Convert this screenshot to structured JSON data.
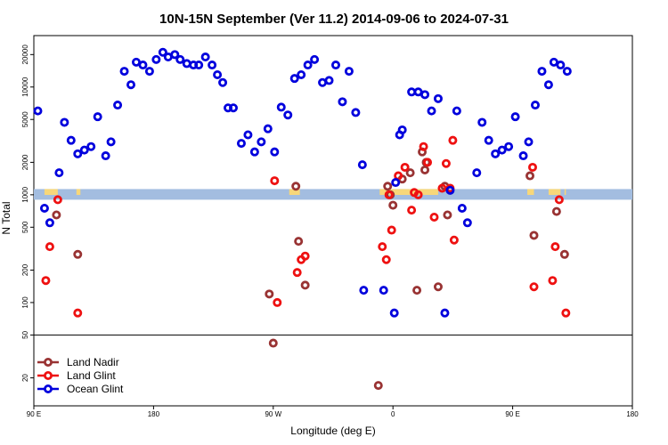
{
  "chart_data": {
    "type": "scatter",
    "title": "10N-15N September (Ver 11.2)   2014-09-06 to 2024-07-31",
    "xlabel": "Longitude (deg E)",
    "ylabel": "N Total",
    "xlim": [
      90,
      540
    ],
    "ylim": [
      11,
      30000
    ],
    "y_scale": "log",
    "x_ticks": [
      {
        "value": 90,
        "label": "90 E"
      },
      {
        "value": 180,
        "label": "180"
      },
      {
        "value": 270,
        "label": "90 W"
      },
      {
        "value": 360,
        "label": "0"
      },
      {
        "value": 450,
        "label": "90 E"
      },
      {
        "value": 540,
        "label": "180"
      }
    ],
    "y_ticks": [
      {
        "value": 20,
        "label": "20"
      },
      {
        "value": 50,
        "label": "50"
      },
      {
        "value": 100,
        "label": "100"
      },
      {
        "value": 200,
        "label": "200"
      },
      {
        "value": 500,
        "label": "500"
      },
      {
        "value": 1000,
        "label": "1000"
      },
      {
        "value": 2000,
        "label": "2000"
      },
      {
        "value": 5000,
        "label": "5000"
      },
      {
        "value": 10000,
        "label": "10000"
      },
      {
        "value": 20000,
        "label": "20000"
      }
    ],
    "legend_position": "bottom-left",
    "separator_y": 50,
    "band": {
      "low": 900,
      "high": 1130,
      "color": "#a3bde0",
      "land_color": "#f7d77a"
    },
    "series": [
      {
        "name": "Land Nadir",
        "color": "#993333",
        "points": [
          [
            107,
            650
          ],
          [
            123,
            280
          ],
          [
            267,
            120
          ],
          [
            270,
            42
          ],
          [
            287,
            1200
          ],
          [
            289,
            370
          ],
          [
            294,
            145
          ],
          [
            349,
            17
          ],
          [
            356,
            1200
          ],
          [
            358,
            1000
          ],
          [
            360,
            800
          ],
          [
            367,
            1400
          ],
          [
            373,
            1600
          ],
          [
            378,
            130
          ],
          [
            382,
            2500
          ],
          [
            384,
            1700
          ],
          [
            385,
            2000
          ],
          [
            394,
            140
          ],
          [
            399,
            1200
          ],
          [
            401,
            650
          ],
          [
            463,
            1500
          ],
          [
            466,
            420
          ],
          [
            483,
            700
          ],
          [
            489,
            280
          ]
        ]
      },
      {
        "name": "Land Glint",
        "color": "#ee1111",
        "points": [
          [
            99,
            160
          ],
          [
            102,
            330
          ],
          [
            108,
            900
          ],
          [
            123,
            80
          ],
          [
            271,
            1350
          ],
          [
            273,
            100
          ],
          [
            288,
            190
          ],
          [
            291,
            250
          ],
          [
            294,
            270
          ],
          [
            352,
            330
          ],
          [
            355,
            250
          ],
          [
            357,
            1000
          ],
          [
            359,
            470
          ],
          [
            364,
            1500
          ],
          [
            369,
            1800
          ],
          [
            374,
            720
          ],
          [
            376,
            1050
          ],
          [
            379,
            1000
          ],
          [
            383,
            2800
          ],
          [
            386,
            2000
          ],
          [
            391,
            620
          ],
          [
            397,
            1150
          ],
          [
            400,
            1950
          ],
          [
            403,
            1150
          ],
          [
            405,
            3200
          ],
          [
            406,
            380
          ],
          [
            465,
            1800
          ],
          [
            466,
            140
          ],
          [
            480,
            160
          ],
          [
            482,
            330
          ],
          [
            485,
            900
          ],
          [
            490,
            80
          ]
        ]
      },
      {
        "name": "Ocean Glint",
        "color": "#0000dd",
        "points": [
          [
            93,
            6000
          ],
          [
            98,
            750
          ],
          [
            102,
            550
          ],
          [
            109,
            1600
          ],
          [
            113,
            4700
          ],
          [
            118,
            3200
          ],
          [
            123,
            2400
          ],
          [
            128,
            2600
          ],
          [
            133,
            2800
          ],
          [
            138,
            5300
          ],
          [
            144,
            2300
          ],
          [
            148,
            3100
          ],
          [
            153,
            6800
          ],
          [
            158,
            14000
          ],
          [
            163,
            10500
          ],
          [
            167,
            17000
          ],
          [
            172,
            16000
          ],
          [
            177,
            14000
          ],
          [
            182,
            18000
          ],
          [
            187,
            21000
          ],
          [
            191,
            19000
          ],
          [
            196,
            20000
          ],
          [
            200,
            18000
          ],
          [
            205,
            16500
          ],
          [
            210,
            16000
          ],
          [
            214,
            16000
          ],
          [
            219,
            19000
          ],
          [
            224,
            16000
          ],
          [
            228,
            13000
          ],
          [
            232,
            11000
          ],
          [
            236,
            6400
          ],
          [
            240,
            6400
          ],
          [
            246,
            3000
          ],
          [
            251,
            3600
          ],
          [
            256,
            2500
          ],
          [
            261,
            3100
          ],
          [
            266,
            4100
          ],
          [
            271,
            2500
          ],
          [
            276,
            6500
          ],
          [
            281,
            5500
          ],
          [
            286,
            12000
          ],
          [
            291,
            13000
          ],
          [
            296,
            16000
          ],
          [
            301,
            18000
          ],
          [
            307,
            11000
          ],
          [
            312,
            11500
          ],
          [
            317,
            16000
          ],
          [
            322,
            7300
          ],
          [
            327,
            14000
          ],
          [
            332,
            5800
          ],
          [
            337,
            1900
          ],
          [
            338,
            130
          ],
          [
            353,
            130
          ],
          [
            361,
            80
          ],
          [
            362,
            1300
          ],
          [
            365,
            3600
          ],
          [
            367,
            4000
          ],
          [
            374,
            9000
          ],
          [
            379,
            9000
          ],
          [
            384,
            8500
          ],
          [
            389,
            6000
          ],
          [
            394,
            7800
          ],
          [
            399,
            80
          ],
          [
            403,
            1100
          ],
          [
            408,
            6000
          ],
          [
            412,
            750
          ],
          [
            416,
            550
          ],
          [
            423,
            1600
          ],
          [
            427,
            4700
          ],
          [
            432,
            3200
          ],
          [
            437,
            2400
          ],
          [
            442,
            2600
          ],
          [
            447,
            2800
          ],
          [
            452,
            5300
          ],
          [
            458,
            2300
          ],
          [
            462,
            3100
          ],
          [
            467,
            6800
          ],
          [
            472,
            14000
          ],
          [
            477,
            10500
          ],
          [
            481,
            17000
          ],
          [
            486,
            16000
          ],
          [
            491,
            14000
          ]
        ]
      }
    ]
  }
}
